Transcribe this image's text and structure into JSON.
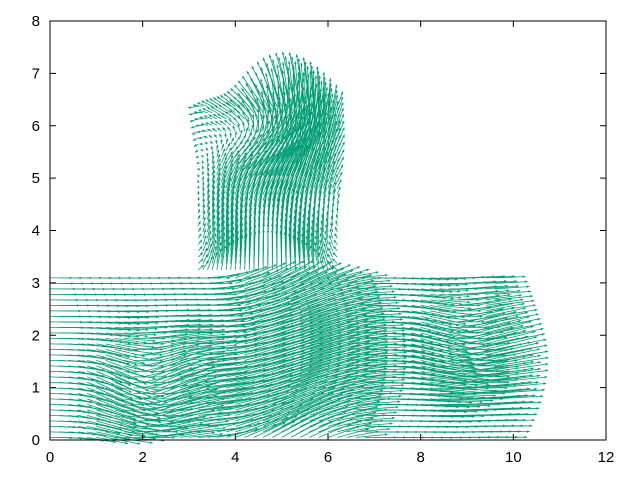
{
  "chart_data": {
    "type": "vector-field",
    "title": "",
    "xlabel": "",
    "ylabel": "",
    "xlim": [
      0,
      12
    ],
    "ylim": [
      0,
      8
    ],
    "x_ticks": [
      "0",
      "2",
      "4",
      "6",
      "8",
      "10",
      "12"
    ],
    "y_ticks": [
      "0",
      "1",
      "2",
      "3",
      "4",
      "5",
      "6",
      "7",
      "8"
    ],
    "grid": false,
    "legend": "none",
    "color": "#009e73",
    "domain": {
      "channel": {
        "x": [
          0,
          9.6
        ],
        "y": [
          0,
          3.15
        ]
      },
      "branch": {
        "x": [
          3.2,
          6.2
        ],
        "y": [
          3.15,
          6.4
        ]
      }
    },
    "inlet_u": 1.0,
    "outlet_bulge_x": 10.5,
    "plume_top_y": 7.45,
    "vortex_lower": {
      "x": 1.8,
      "y": 0.95
    },
    "vortex_upper": {
      "x": 4.8,
      "y": 5.9
    },
    "vortex_outlet": {
      "x": 8.6,
      "y": 1.8
    }
  }
}
